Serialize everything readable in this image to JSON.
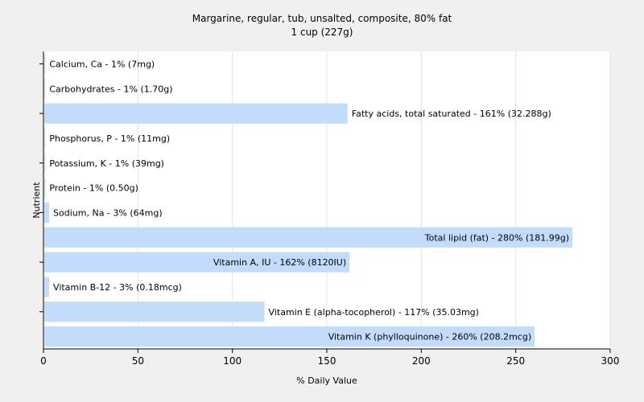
{
  "chart_data": {
    "type": "bar",
    "orientation": "horizontal",
    "title": "Margarine, regular, tub, unsalted, composite, 80% fat",
    "subtitle": "1 cup (227g)",
    "xlabel": "% Daily Value",
    "ylabel": "Nutrient",
    "xlim": [
      0,
      300
    ],
    "xticks": [
      0,
      50,
      100,
      150,
      200,
      250,
      300
    ],
    "grid": true,
    "bar_color": "#c4dcfc",
    "categories": [
      "Calcium, Ca",
      "Carbohydrates",
      "Fatty acids, total saturated",
      "Phosphorus, P",
      "Potassium, K",
      "Protein",
      "Sodium, Na",
      "Total lipid (fat)",
      "Vitamin A, IU",
      "Vitamin B-12",
      "Vitamin E (alpha-tocopherol)",
      "Vitamin K (phylloquinone)"
    ],
    "values": [
      1,
      1,
      161,
      1,
      1,
      1,
      3,
      280,
      162,
      3,
      117,
      260
    ],
    "labels": [
      "Calcium, Ca - 1% (7mg)",
      "Carbohydrates - 1% (1.70g)",
      "Fatty acids, total saturated - 161% (32.288g)",
      "Phosphorus, P - 1% (11mg)",
      "Potassium, K - 1% (39mg)",
      "Protein - 1% (0.50g)",
      "Sodium, Na - 3% (64mg)",
      "Total lipid (fat) - 280% (181.99g)",
      "Vitamin A, IU - 162% (8120IU)",
      "Vitamin B-12 - 3% (0.18mcg)",
      "Vitamin E (alpha-tocopherol) - 117% (35.03mg)",
      "Vitamin K (phylloquinone) - 260% (208.2mcg)"
    ]
  }
}
